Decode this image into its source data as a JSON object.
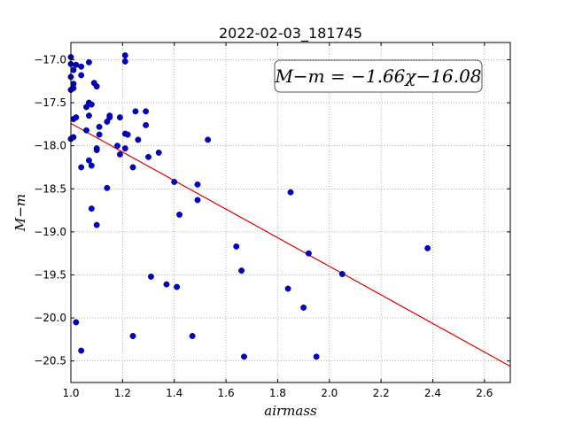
{
  "chart_data": {
    "type": "scatter",
    "title": "2022-02-03_181745",
    "xlabel": "airmass",
    "ylabel": "M−m",
    "xlim": [
      1.0,
      2.7
    ],
    "ylim": [
      -20.75,
      -16.8
    ],
    "y_inverted": true,
    "grid": true,
    "xticks": [
      1.0,
      1.2,
      1.4,
      1.6,
      1.8,
      2.0,
      2.2,
      2.4,
      2.6
    ],
    "xtick_labels": [
      "1.0",
      "1.2",
      "1.4",
      "1.6",
      "1.8",
      "2.0",
      "2.2",
      "2.4",
      "2.6"
    ],
    "yticks": [
      -17.0,
      -17.5,
      -18.0,
      -18.5,
      -19.0,
      -19.5,
      -20.0,
      -20.5
    ],
    "ytick_labels": [
      "−17.0",
      "−17.5",
      "−18.0",
      "−18.5",
      "−19.0",
      "−19.5",
      "−20.0",
      "−20.5"
    ],
    "annotation": "M−m = −1.66χ−16.08",
    "fit": {
      "slope": -1.66,
      "intercept": -16.08,
      "color": "#dd0000"
    },
    "point_color": "#0000cc",
    "points": [
      [
        1.0,
        -16.97
      ],
      [
        1.0,
        -17.05
      ],
      [
        1.01,
        -17.12
      ],
      [
        1.0,
        -17.2
      ],
      [
        1.01,
        -17.28
      ],
      [
        1.0,
        -17.35
      ],
      [
        1.01,
        -17.33
      ],
      [
        1.02,
        -17.06
      ],
      [
        1.04,
        -17.08
      ],
      [
        1.04,
        -17.18
      ],
      [
        1.07,
        -17.03
      ],
      [
        1.09,
        -17.27
      ],
      [
        1.1,
        -17.31
      ],
      [
        1.07,
        -17.5
      ],
      [
        1.08,
        -17.52
      ],
      [
        1.06,
        -17.55
      ],
      [
        1.01,
        -17.69
      ],
      [
        1.02,
        -17.67
      ],
      [
        1.07,
        -17.65
      ],
      [
        1.06,
        -17.82
      ],
      [
        1.0,
        -17.92
      ],
      [
        1.01,
        -17.9
      ],
      [
        1.04,
        -18.25
      ],
      [
        1.07,
        -18.17
      ],
      [
        1.08,
        -18.23
      ],
      [
        1.1,
        -18.05
      ],
      [
        1.1,
        -18.03
      ],
      [
        1.11,
        -17.87
      ],
      [
        1.11,
        -17.78
      ],
      [
        1.14,
        -17.72
      ],
      [
        1.15,
        -17.67
      ],
      [
        1.15,
        -17.65
      ],
      [
        1.19,
        -17.67
      ],
      [
        1.18,
        -18.0
      ],
      [
        1.19,
        -18.1
      ],
      [
        1.21,
        -17.86
      ],
      [
        1.22,
        -17.87
      ],
      [
        1.21,
        -18.03
      ],
      [
        1.24,
        -18.25
      ],
      [
        1.25,
        -17.6
      ],
      [
        1.29,
        -17.6
      ],
      [
        1.29,
        -17.76
      ],
      [
        1.26,
        -17.93
      ],
      [
        1.3,
        -18.13
      ],
      [
        1.34,
        -18.08
      ],
      [
        1.21,
        -16.95
      ],
      [
        1.21,
        -17.02
      ],
      [
        1.14,
        -18.49
      ],
      [
        1.08,
        -18.73
      ],
      [
        1.1,
        -18.92
      ],
      [
        1.4,
        -18.42
      ],
      [
        1.42,
        -18.8
      ],
      [
        1.49,
        -18.45
      ],
      [
        1.49,
        -18.63
      ],
      [
        1.53,
        -17.93
      ],
      [
        1.31,
        -19.52
      ],
      [
        1.37,
        -19.61
      ],
      [
        1.41,
        -19.64
      ],
      [
        1.24,
        -20.21
      ],
      [
        1.47,
        -20.21
      ],
      [
        1.02,
        -20.05
      ],
      [
        1.04,
        -20.38
      ],
      [
        1.64,
        -19.17
      ],
      [
        1.66,
        -19.45
      ],
      [
        1.67,
        -20.45
      ],
      [
        1.84,
        -19.66
      ],
      [
        1.85,
        -18.54
      ],
      [
        1.9,
        -19.88
      ],
      [
        1.92,
        -19.25
      ],
      [
        1.95,
        -20.45
      ],
      [
        2.05,
        -19.49
      ],
      [
        2.38,
        -19.19
      ]
    ]
  }
}
